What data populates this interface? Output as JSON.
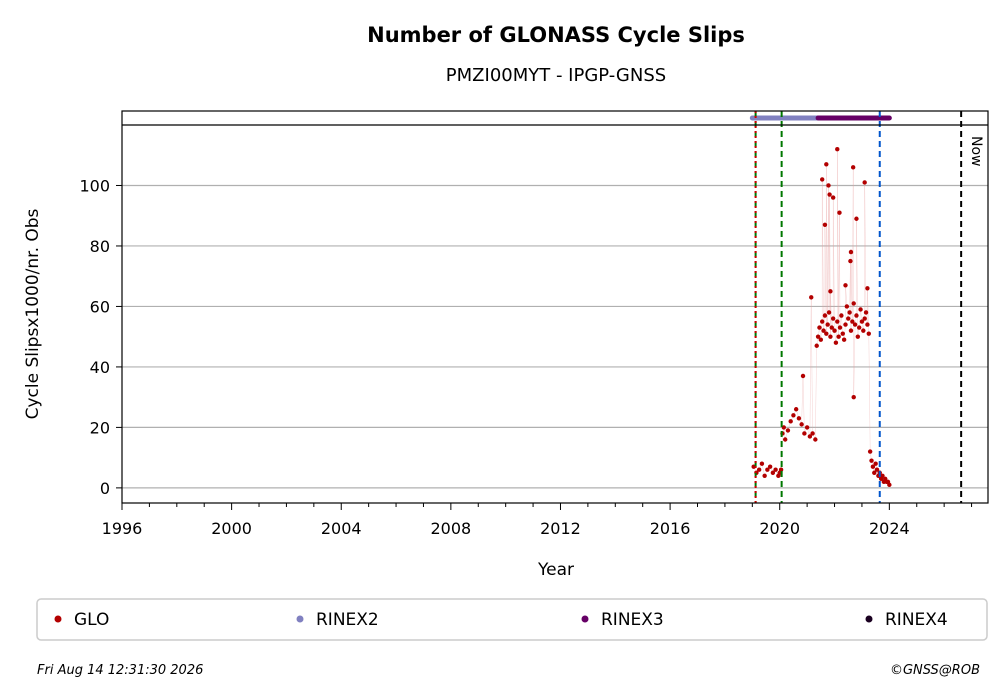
{
  "chart_data": {
    "type": "scatter",
    "title": "Number of GLONASS Cycle Slips",
    "subtitle": "PMZI00MYT - IPGP-GNSS",
    "xlabel": "Year",
    "ylabel": "Cycle Slipsx1000/nr. Obs",
    "xlim": [
      1996,
      2027.6
    ],
    "ylim": [
      -5,
      120
    ],
    "x_ticks": [
      1996,
      2000,
      2004,
      2008,
      2012,
      2016,
      2020,
      2024
    ],
    "y_ticks": [
      0,
      20,
      40,
      60,
      80,
      100
    ],
    "grid": "horizontal",
    "colors": {
      "GLO": "#b30000",
      "RINEX2": "#8080c0",
      "RINEX3": "#660066",
      "RINEX4": "#1a0020",
      "event_green": "#007700",
      "event_red": "#cc0000",
      "event_blue": "#0055cc",
      "now": "#000000"
    },
    "series": [
      {
        "name": "GLO",
        "x": [
          2019.05,
          2019.15,
          2019.25,
          2019.35,
          2019.45,
          2019.55,
          2019.65,
          2019.75,
          2019.85,
          2019.95,
          2020.0,
          2020.05,
          2020.1,
          2020.15,
          2020.2,
          2020.3,
          2020.4,
          2020.5,
          2020.6,
          2020.7,
          2020.8,
          2020.9,
          2021.0,
          2021.1,
          2021.2,
          2021.3,
          2021.35,
          2021.4,
          2021.45,
          2021.5,
          2021.55,
          2021.6,
          2021.65,
          2021.7,
          2021.75,
          2021.8,
          2021.85,
          2021.9,
          2021.95,
          2022.0,
          2022.05,
          2022.1,
          2022.15,
          2022.2,
          2022.25,
          2022.3,
          2022.35,
          2022.4,
          2022.45,
          2022.5,
          2022.55,
          2022.6,
          2022.65,
          2022.7,
          2022.75,
          2022.8,
          2022.85,
          2022.9,
          2022.95,
          2023.0,
          2023.05,
          2023.1,
          2023.15,
          2023.2,
          2023.25,
          2023.3,
          2023.35,
          2023.4,
          2023.45,
          2023.5,
          2023.55,
          2023.6,
          2023.65,
          2023.7,
          2023.75,
          2023.8,
          2023.85,
          2023.9,
          2023.95,
          2024.0,
          2020.85,
          2021.15,
          2021.55,
          2021.65,
          2021.7,
          2021.78,
          2021.82,
          2021.95,
          2022.1,
          2022.18,
          2022.4,
          2022.58,
          2022.68,
          2022.8,
          2023.1,
          2022.7,
          2021.85,
          2022.6,
          2023.2
        ],
        "y": [
          7,
          5,
          6,
          8,
          4,
          6,
          7,
          5,
          6,
          4,
          5,
          6,
          18,
          20,
          16,
          19,
          22,
          24,
          26,
          23,
          21,
          18,
          20,
          17,
          18,
          16,
          47,
          50,
          53,
          49,
          55,
          52,
          57,
          51,
          54,
          58,
          50,
          53,
          56,
          52,
          48,
          55,
          50,
          53,
          57,
          51,
          49,
          54,
          60,
          56,
          58,
          52,
          55,
          61,
          54,
          57,
          50,
          53,
          59,
          55,
          52,
          56,
          58,
          54,
          51,
          12,
          9,
          7,
          5,
          8,
          6,
          4,
          5,
          3,
          4,
          2,
          3,
          2,
          2,
          1,
          37,
          63,
          102,
          87,
          107,
          100,
          97,
          96,
          112,
          91,
          67,
          75,
          106,
          89,
          101,
          30,
          65,
          78,
          66
        ]
      }
    ],
    "annotations": [
      {
        "x": 2019.12,
        "color": "event_green",
        "style": "dashed"
      },
      {
        "x": 2019.12,
        "color": "event_red",
        "style": "dotted"
      },
      {
        "x": 2020.07,
        "color": "event_green",
        "style": "dashed"
      },
      {
        "x": 2023.65,
        "color": "event_blue",
        "style": "dashed"
      },
      {
        "x": 2026.62,
        "color": "now",
        "style": "dashed",
        "label": "Now"
      }
    ],
    "format_bands": [
      {
        "name": "RINEX2",
        "start": 2019.0,
        "end": 2021.4
      },
      {
        "name": "RINEX3",
        "start": 2021.4,
        "end": 2024.0
      }
    ],
    "legend": {
      "placement": "bottom",
      "entries": [
        "GLO",
        "RINEX2",
        "RINEX3",
        "RINEX4"
      ]
    }
  },
  "footer": {
    "timestamp": "Fri Aug 14 12:31:30 2026",
    "credit": "©GNSS@ROB"
  }
}
